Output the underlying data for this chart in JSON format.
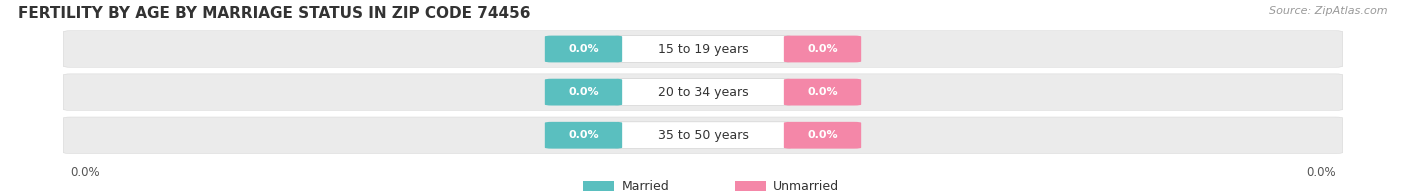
{
  "title": "FERTILITY BY AGE BY MARRIAGE STATUS IN ZIP CODE 74456",
  "source": "Source: ZipAtlas.com",
  "age_groups": [
    "15 to 19 years",
    "20 to 34 years",
    "35 to 50 years"
  ],
  "married_color": "#5abfbf",
  "unmarried_color": "#f487a8",
  "row_bg_color": "#ebebeb",
  "label_box_color": "#f7f7f7",
  "background_color": "#ffffff",
  "title_fontsize": 11,
  "source_fontsize": 8,
  "label_fontsize": 9,
  "pill_fontsize": 8,
  "axis_fontsize": 8.5,
  "legend_fontsize": 9,
  "figsize": [
    14.06,
    1.96
  ],
  "dpi": 100
}
